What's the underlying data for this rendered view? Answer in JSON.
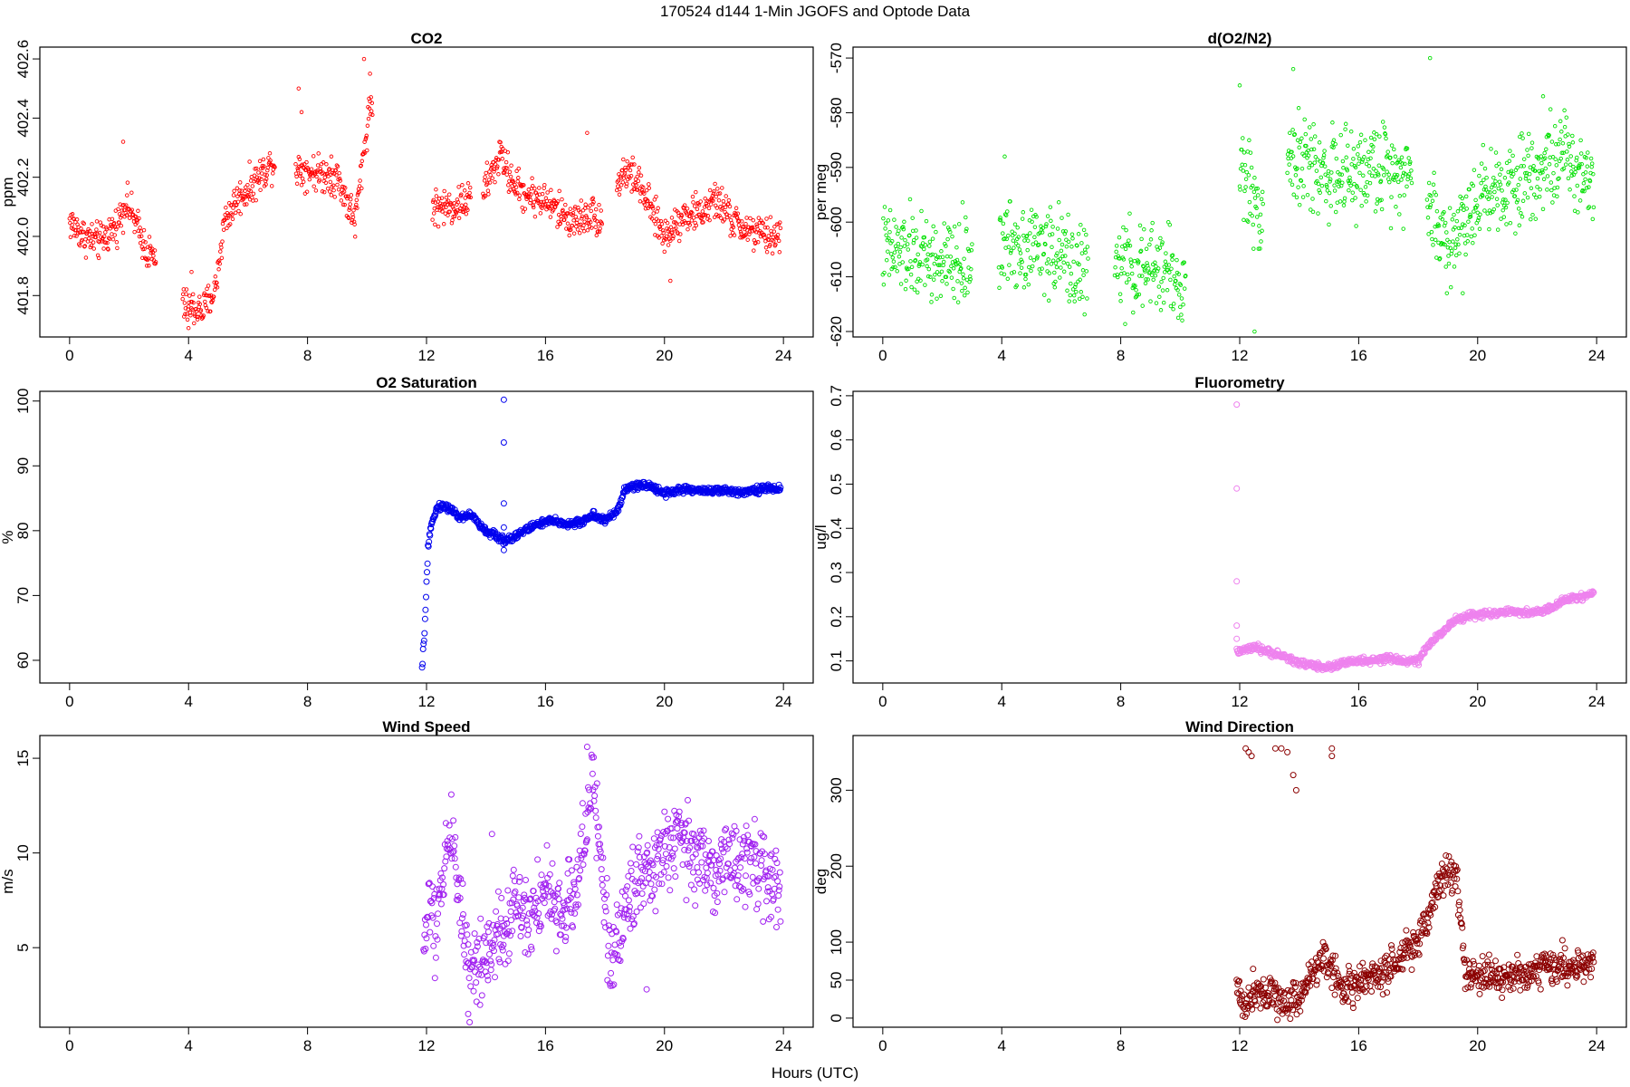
{
  "figure": {
    "title": "170524   d144   1-Min  JGOFS and Optode Data",
    "xlabel": "Hours (UTC)"
  },
  "chart_data": [
    {
      "type": "scatter",
      "title": "CO2",
      "ylabel": "ppm",
      "color": "#ff0000",
      "marker_size": "small",
      "xlim": [
        -1,
        25
      ],
      "ylim": [
        401.66,
        402.64
      ],
      "xticks": [
        0,
        4,
        8,
        12,
        16,
        20,
        24
      ],
      "yticks": [
        401.8,
        402.0,
        402.2,
        402.4,
        402.6
      ],
      "ytick_labels": [
        "401.8",
        "402.0",
        "402.2",
        "402.4",
        "402.6"
      ],
      "profile": [
        [
          0,
          402.05
        ],
        [
          0.5,
          402.0
        ],
        [
          1.0,
          401.98
        ],
        [
          1.6,
          402.04
        ],
        [
          1.9,
          402.12
        ],
        [
          2.2,
          402.05
        ],
        [
          2.6,
          401.95
        ],
        [
          2.9,
          401.92
        ],
        [
          3.9,
          401.76
        ],
        [
          4.5,
          401.75
        ],
        [
          4.9,
          401.82
        ],
        [
          5.2,
          402.05
        ],
        [
          5.6,
          402.12
        ],
        [
          6.1,
          402.17
        ],
        [
          6.8,
          402.25
        ],
        [
          9.0,
          402.2
        ],
        [
          9.6,
          402.05
        ],
        [
          10.1,
          402.45
        ],
        [
          12.2,
          402.1
        ],
        [
          12.9,
          402.1
        ],
        [
          13.9,
          402.15
        ],
        [
          14.5,
          402.28
        ],
        [
          14.8,
          402.2
        ],
        [
          15.2,
          402.15
        ],
        [
          16.0,
          402.12
        ],
        [
          16.5,
          402.08
        ],
        [
          17.0,
          402.05
        ],
        [
          17.5,
          402.08
        ],
        [
          18.0,
          402.05
        ],
        [
          18.6,
          402.22
        ],
        [
          19.0,
          402.2
        ],
        [
          19.5,
          402.1
        ],
        [
          20.0,
          402.0
        ],
        [
          20.6,
          402.07
        ],
        [
          21.2,
          402.08
        ],
        [
          21.8,
          402.12
        ],
        [
          22.3,
          402.05
        ],
        [
          22.8,
          402.02
        ],
        [
          23.4,
          402.0
        ],
        [
          23.9,
          402.0
        ]
      ],
      "segments": [
        [
          0,
          2.9
        ],
        [
          3.8,
          6.9
        ],
        [
          7.6,
          10.2
        ],
        [
          12.2,
          13.5
        ],
        [
          13.9,
          17.9
        ],
        [
          18.4,
          23.9
        ]
      ],
      "spread": 0.03,
      "outliers": [
        [
          7.7,
          402.5
        ],
        [
          7.8,
          402.42
        ],
        [
          8.8,
          402.27
        ],
        [
          9.9,
          402.6
        ],
        [
          10.1,
          402.55
        ],
        [
          1.8,
          402.32
        ],
        [
          17.4,
          402.35
        ],
        [
          4.0,
          401.69
        ],
        [
          4.1,
          401.88
        ],
        [
          20.2,
          401.85
        ]
      ]
    },
    {
      "type": "scatter",
      "title": "d(O2/N2)",
      "ylabel": "per meg",
      "color": "#00e000",
      "marker_size": "small",
      "xlim": [
        -1,
        25
      ],
      "ylim": [
        -621,
        -568
      ],
      "xticks": [
        0,
        4,
        8,
        12,
        16,
        20,
        24
      ],
      "yticks": [
        -620,
        -610,
        -600,
        -590,
        -580,
        -570
      ],
      "ytick_labels": [
        "-620",
        "-610",
        "-600",
        "-590",
        "-580",
        "-570"
      ],
      "profile": [
        [
          0,
          -605
        ],
        [
          1.0,
          -606
        ],
        [
          2.0,
          -608
        ],
        [
          3.0,
          -607
        ],
        [
          4.0,
          -604
        ],
        [
          5.0,
          -604
        ],
        [
          6.0,
          -606
        ],
        [
          6.8,
          -609
        ],
        [
          8.0,
          -608
        ],
        [
          9.0,
          -609
        ],
        [
          9.6,
          -608
        ],
        [
          10.0,
          -613
        ],
        [
          12.1,
          -590
        ],
        [
          12.6,
          -598
        ],
        [
          13.5,
          -588
        ],
        [
          14.5,
          -590
        ],
        [
          15.5,
          -592
        ],
        [
          16.5,
          -590
        ],
        [
          17.5,
          -590
        ],
        [
          18.5,
          -598
        ],
        [
          19.0,
          -605
        ],
        [
          19.5,
          -600
        ],
        [
          20.0,
          -595
        ],
        [
          21.0,
          -593
        ],
        [
          22.0,
          -590
        ],
        [
          22.8,
          -588
        ],
        [
          23.9,
          -592
        ]
      ],
      "segments": [
        [
          0,
          3.0
        ],
        [
          3.9,
          6.9
        ],
        [
          7.8,
          10.2
        ],
        [
          12.0,
          12.8
        ],
        [
          13.6,
          17.8
        ],
        [
          18.3,
          23.9
        ]
      ],
      "spread": 4,
      "outliers": [
        [
          4.1,
          -588
        ],
        [
          12.0,
          -575
        ],
        [
          12.5,
          -620
        ],
        [
          13.8,
          -572
        ],
        [
          18.4,
          -570
        ],
        [
          19.5,
          -613
        ],
        [
          22.2,
          -577
        ]
      ]
    },
    {
      "type": "scatter",
      "title": "O2 Saturation",
      "ylabel": "%",
      "color": "#0000ee",
      "marker_size": "large",
      "xlim": [
        -1,
        25
      ],
      "ylim": [
        56.5,
        101.5
      ],
      "xticks": [
        0,
        4,
        8,
        12,
        16,
        20,
        24
      ],
      "yticks": [
        60,
        70,
        80,
        90,
        100
      ],
      "ytick_labels": [
        "60",
        "70",
        "80",
        "90",
        "100"
      ],
      "profile": [
        [
          11.85,
          58.5
        ],
        [
          11.95,
          66
        ],
        [
          12.05,
          77
        ],
        [
          12.2,
          82
        ],
        [
          12.4,
          83.8
        ],
        [
          12.8,
          83.5
        ],
        [
          13.1,
          82
        ],
        [
          13.5,
          82.5
        ],
        [
          13.9,
          80.2
        ],
        [
          14.2,
          79.5
        ],
        [
          14.6,
          78.5
        ],
        [
          14.9,
          79
        ],
        [
          15.3,
          80
        ],
        [
          15.7,
          81
        ],
        [
          16.2,
          81.5
        ],
        [
          16.8,
          81
        ],
        [
          17.2,
          81.3
        ],
        [
          17.6,
          82.5
        ],
        [
          18.0,
          81.5
        ],
        [
          18.4,
          83
        ],
        [
          18.7,
          86.5
        ],
        [
          19.2,
          87
        ],
        [
          19.6,
          86.8
        ],
        [
          20.0,
          85.8
        ],
        [
          20.5,
          86.3
        ],
        [
          21.5,
          86.2
        ],
        [
          22.5,
          86
        ],
        [
          23.0,
          86.3
        ],
        [
          23.5,
          86.5
        ],
        [
          23.9,
          86.5
        ]
      ],
      "segments": [
        [
          11.85,
          23.9
        ]
      ],
      "spread": 0.3,
      "outliers": [
        [
          14.6,
          100.2
        ],
        [
          14.6,
          93.6
        ],
        [
          14.6,
          84.2
        ],
        [
          14.6,
          80.5
        ],
        [
          14.6,
          77
        ]
      ]
    },
    {
      "type": "scatter",
      "title": "Fluorometry",
      "ylabel": "ug/l",
      "color": "#ee82ee",
      "marker_size": "large",
      "xlim": [
        -1,
        25
      ],
      "ylim": [
        0.05,
        0.71
      ],
      "xticks": [
        0,
        4,
        8,
        12,
        16,
        20,
        24
      ],
      "yticks": [
        0.1,
        0.2,
        0.3,
        0.4,
        0.5,
        0.6,
        0.7
      ],
      "ytick_labels": [
        "0.1",
        "0.2",
        "0.3",
        "0.4",
        "0.5",
        "0.6",
        "0.7"
      ],
      "profile": [
        [
          11.9,
          0.12
        ],
        [
          12.5,
          0.13
        ],
        [
          13.0,
          0.12
        ],
        [
          13.5,
          0.11
        ],
        [
          14.0,
          0.095
        ],
        [
          14.5,
          0.09
        ],
        [
          15.0,
          0.085
        ],
        [
          15.5,
          0.095
        ],
        [
          16.0,
          0.1
        ],
        [
          16.5,
          0.1
        ],
        [
          17.0,
          0.105
        ],
        [
          17.5,
          0.1
        ],
        [
          18.0,
          0.1
        ],
        [
          18.3,
          0.13
        ],
        [
          18.7,
          0.16
        ],
        [
          19.2,
          0.19
        ],
        [
          19.6,
          0.2
        ],
        [
          20.0,
          0.205
        ],
        [
          21.0,
          0.21
        ],
        [
          22.0,
          0.21
        ],
        [
          22.5,
          0.22
        ],
        [
          23.0,
          0.24
        ],
        [
          23.5,
          0.245
        ],
        [
          23.9,
          0.255
        ]
      ],
      "segments": [
        [
          11.9,
          23.9
        ]
      ],
      "spread": 0.004,
      "outliers": [
        [
          11.9,
          0.68
        ],
        [
          11.9,
          0.49
        ],
        [
          11.9,
          0.28
        ],
        [
          11.9,
          0.18
        ],
        [
          11.9,
          0.15
        ]
      ]
    },
    {
      "type": "scatter",
      "title": "Wind Speed",
      "ylabel": "m/s",
      "color": "#a020f0",
      "marker_size": "large",
      "xlim": [
        -1,
        25
      ],
      "ylim": [
        0.8,
        16.2
      ],
      "xticks": [
        0,
        4,
        8,
        12,
        16,
        20,
        24
      ],
      "yticks": [
        5,
        10,
        15
      ],
      "ytick_labels": [
        "5",
        "10",
        "15"
      ],
      "profile": [
        [
          11.9,
          4.5
        ],
        [
          12.1,
          8
        ],
        [
          12.3,
          5
        ],
        [
          12.6,
          10
        ],
        [
          12.9,
          11
        ],
        [
          13.2,
          6.5
        ],
        [
          13.5,
          3.5
        ],
        [
          13.8,
          4.5
        ],
        [
          14.2,
          5.5
        ],
        [
          14.6,
          6
        ],
        [
          15.0,
          7.5
        ],
        [
          15.5,
          7
        ],
        [
          16.0,
          8
        ],
        [
          16.5,
          6.5
        ],
        [
          17.0,
          8
        ],
        [
          17.3,
          11
        ],
        [
          17.6,
          13.5
        ],
        [
          17.9,
          9
        ],
        [
          18.2,
          4
        ],
        [
          18.5,
          6
        ],
        [
          18.8,
          7.5
        ],
        [
          19.2,
          9.5
        ],
        [
          19.5,
          8.5
        ],
        [
          19.8,
          9.5
        ],
        [
          20.2,
          10.5
        ],
        [
          20.6,
          10.5
        ],
        [
          21.0,
          10
        ],
        [
          21.5,
          9
        ],
        [
          22.0,
          9.5
        ],
        [
          22.5,
          9.8
        ],
        [
          23.0,
          9.2
        ],
        [
          23.5,
          8.7
        ],
        [
          23.9,
          8.5
        ]
      ],
      "segments": [
        [
          11.9,
          23.9
        ]
      ],
      "spread": 1.1,
      "outliers": [
        [
          17.4,
          15.6
        ],
        [
          13.4,
          1.5
        ],
        [
          19.4,
          2.8
        ],
        [
          14.2,
          11
        ]
      ]
    },
    {
      "type": "scatter",
      "title": "Wind Direction",
      "ylabel": "deg",
      "color": "#8b0000",
      "marker_size": "large",
      "xlim": [
        -1,
        25
      ],
      "ylim": [
        -12,
        372
      ],
      "xticks": [
        0,
        4,
        8,
        12,
        16,
        20,
        24
      ],
      "yticks": [
        0,
        50,
        100,
        200,
        300
      ],
      "ytick_labels": [
        "0",
        "50",
        "100",
        "200",
        "300"
      ],
      "profile": [
        [
          11.9,
          40
        ],
        [
          12.2,
          15
        ],
        [
          12.5,
          40
        ],
        [
          13.0,
          35
        ],
        [
          13.5,
          20
        ],
        [
          14.0,
          30
        ],
        [
          14.5,
          60
        ],
        [
          14.8,
          85
        ],
        [
          15.2,
          55
        ],
        [
          15.5,
          40
        ],
        [
          16.0,
          45
        ],
        [
          16.5,
          55
        ],
        [
          17.0,
          60
        ],
        [
          17.5,
          80
        ],
        [
          18.0,
          100
        ],
        [
          18.3,
          130
        ],
        [
          18.6,
          170
        ],
        [
          19.0,
          195
        ],
        [
          19.3,
          185
        ],
        [
          19.6,
          55
        ],
        [
          20.0,
          55
        ],
        [
          20.5,
          55
        ],
        [
          21.0,
          55
        ],
        [
          21.5,
          55
        ],
        [
          22.0,
          68
        ],
        [
          22.5,
          68
        ],
        [
          23.0,
          68
        ],
        [
          23.5,
          70
        ],
        [
          23.9,
          72
        ]
      ],
      "segments": [
        [
          11.9,
          23.9
        ]
      ],
      "spread": 12,
      "outliers": [
        [
          12.2,
          355
        ],
        [
          12.3,
          350
        ],
        [
          12.4,
          345
        ],
        [
          13.2,
          355
        ],
        [
          13.4,
          355
        ],
        [
          13.6,
          350
        ],
        [
          13.8,
          320
        ],
        [
          13.9,
          300
        ],
        [
          15.1,
          355
        ],
        [
          15.1,
          345
        ]
      ]
    }
  ]
}
